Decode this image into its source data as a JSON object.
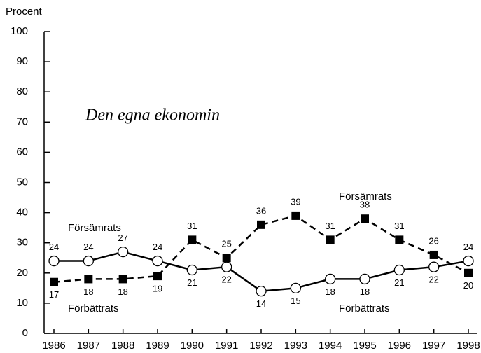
{
  "chart_data": {
    "type": "line",
    "y_label": "Procent",
    "subtitle": "Den egna ekonomin",
    "x": [
      1986,
      1987,
      1988,
      1989,
      1990,
      1991,
      1992,
      1993,
      1994,
      1995,
      1996,
      1997,
      1998
    ],
    "series": [
      {
        "name": "Förbättrats",
        "color": "#000000",
        "style": "solid",
        "marker": "circle",
        "values": [
          24,
          24,
          27,
          24,
          21,
          22,
          14,
          15,
          18,
          18,
          21,
          22,
          24
        ]
      },
      {
        "name": "Försämrats",
        "color": "#000000",
        "style": "dashed",
        "marker": "square",
        "values": [
          17,
          18,
          18,
          19,
          31,
          25,
          36,
          39,
          31,
          38,
          31,
          26,
          20
        ]
      }
    ],
    "ylim": [
      0,
      100
    ],
    "yticks": [
      0,
      10,
      20,
      30,
      40,
      50,
      60,
      70,
      80,
      90,
      100
    ],
    "xlim": [
      1986,
      1998
    ],
    "xticks": [
      1986,
      1987,
      1988,
      1989,
      1990,
      1991,
      1992,
      1993,
      1994,
      1995,
      1996,
      1997,
      1998
    ],
    "grid": false
  }
}
